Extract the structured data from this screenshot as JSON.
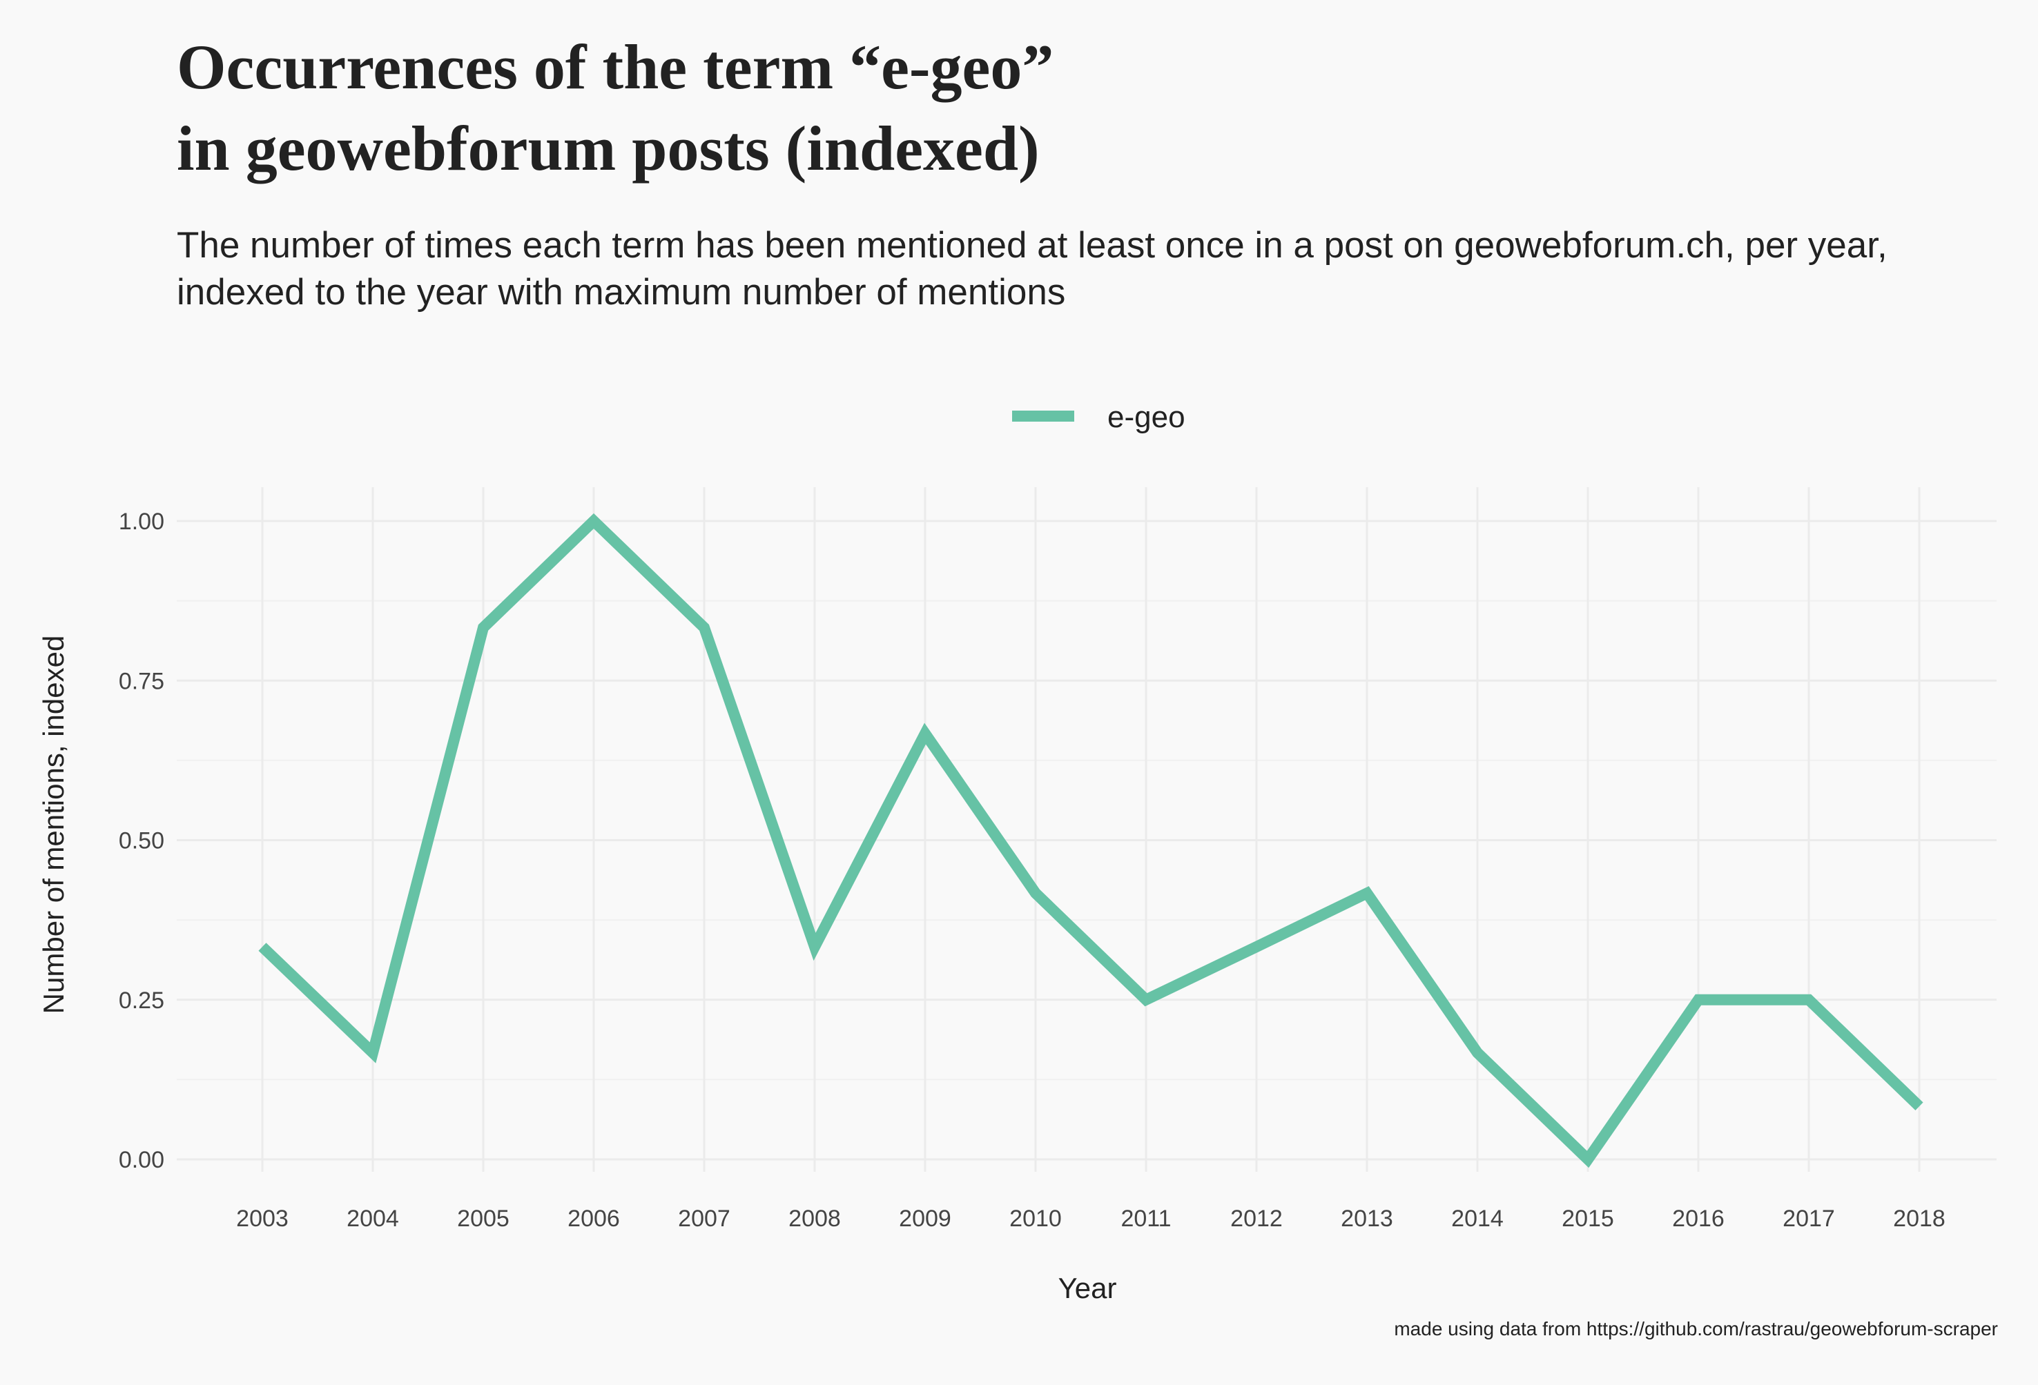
{
  "chart_data": {
    "type": "line",
    "title_lines": [
      "Occurrences of the term “e-geo”",
      "in geowebforum posts (indexed)"
    ],
    "subtitle_lines": [
      "The number of times each term has been mentioned at least once in a post on geowebforum.ch, per year,",
      "indexed to the year with maximum number of mentions"
    ],
    "caption": "made using data from https://github.com/rastrau/geowebforum-scraper",
    "xlabel": "Year",
    "ylabel": "Number of mentions, indexed",
    "x": [
      2003,
      2004,
      2005,
      2006,
      2007,
      2008,
      2009,
      2010,
      2011,
      2012,
      2013,
      2014,
      2015,
      2016,
      2017,
      2018
    ],
    "x_tick_labels": [
      "2003",
      "2004",
      "2005",
      "2006",
      "2007",
      "2008",
      "2009",
      "2010",
      "2011",
      "2012",
      "2013",
      "2014",
      "2015",
      "2016",
      "2017",
      "2018"
    ],
    "y_ticks": [
      0,
      0.25,
      0.5,
      0.75,
      1
    ],
    "y_tick_labels": [
      "0.00",
      "0.25",
      "0.50",
      "0.75",
      "1.00"
    ],
    "ylim": [
      0,
      1
    ],
    "series": [
      {
        "name": "e-geo",
        "color": "#66c2a5",
        "values": [
          0.333,
          0.167,
          0.833,
          1.0,
          0.833,
          0.333,
          0.667,
          0.417,
          0.25,
          0.333,
          0.417,
          0.167,
          0.0,
          0.25,
          0.25,
          0.083
        ]
      }
    ],
    "legend_position": "top",
    "grid": true
  }
}
